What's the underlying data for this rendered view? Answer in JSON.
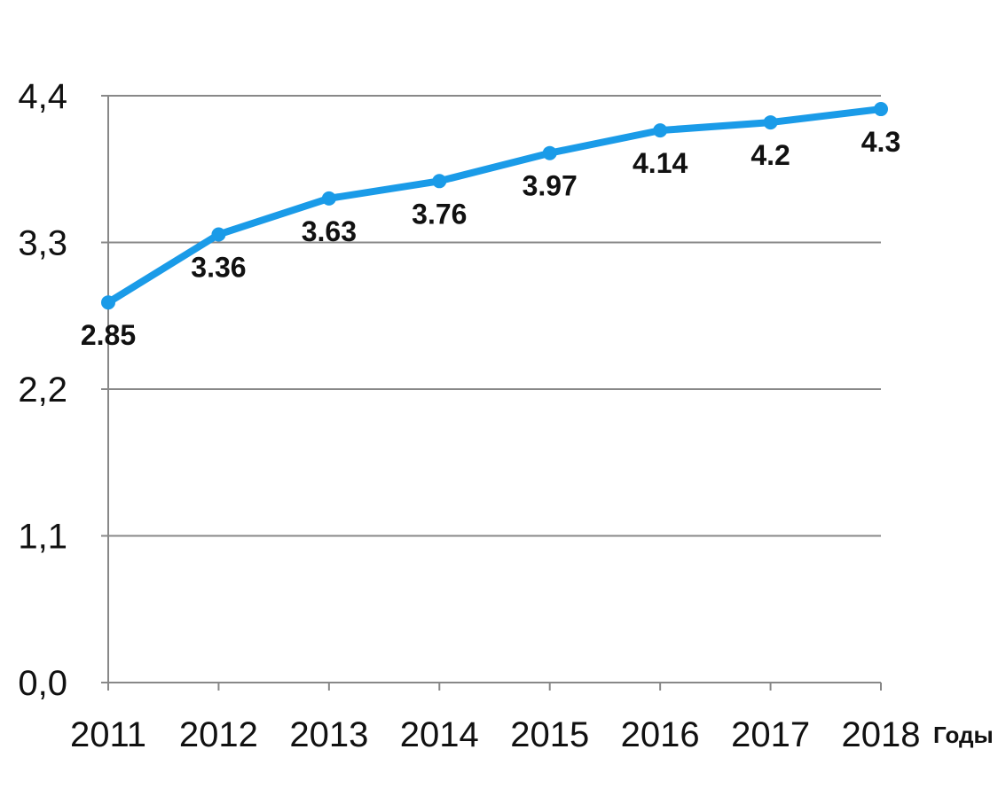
{
  "chart_data": {
    "type": "line",
    "title": "",
    "xlabel": "Годы",
    "ylabel": "",
    "categories": [
      "2011",
      "2012",
      "2013",
      "2014",
      "2015",
      "2016",
      "2017",
      "2018"
    ],
    "series": [
      {
        "values": [
          2.85,
          3.36,
          3.63,
          3.76,
          3.97,
          4.14,
          4.2,
          4.3
        ],
        "data_labels": [
          "2.85",
          "3.36",
          "3.63",
          "3.76",
          "3.97",
          "4.14",
          "4.2",
          "4.3"
        ],
        "color": "#1a9be8"
      }
    ],
    "yticks": [
      0.0,
      1.1,
      2.2,
      3.3,
      4.4
    ],
    "ytick_labels": [
      "0,0",
      "1,1",
      "2,2",
      "3,3",
      "4,4"
    ],
    "ylim": [
      0.0,
      4.4
    ],
    "grid": true,
    "gridline_color": "#888888",
    "legend": "none"
  }
}
